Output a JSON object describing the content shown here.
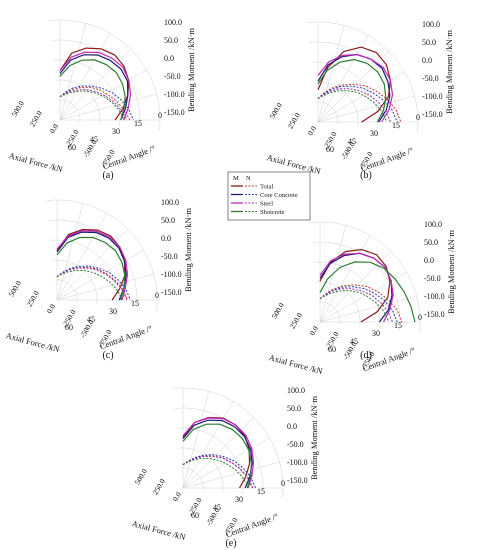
{
  "chart_data": [
    {
      "type": "line",
      "panel_label": "(a)",
      "axis_labels": {
        "bending_moment": "Bending Moment /kN·m",
        "axial_force": "Axial Force /kN",
        "central_angle": "Central Angle /°"
      },
      "moment_ticks": [
        "100.0",
        "50.0",
        "0.0",
        "-50.0",
        "-100.0",
        "-150.0"
      ],
      "axial_ticks": [
        "500.0",
        "250.0",
        "0.0",
        "-250.0",
        "-500.0",
        "-750.0"
      ],
      "angle_ticks": [
        "0",
        "15",
        "30",
        "45",
        "60"
      ],
      "series": [
        {
          "name": "Total",
          "moment": [
            -60,
            5,
            35,
            55,
            65,
            60,
            45,
            20,
            -10,
            -40
          ],
          "axial": [
            -10,
            -60,
            -120,
            -180,
            -240,
            -290,
            -330,
            -380,
            -430,
            -480
          ]
        },
        {
          "name": "Core Concrete",
          "moment": [
            -70,
            -20,
            10,
            30,
            40,
            45,
            40,
            20,
            0,
            -20
          ],
          "axial": [
            -10,
            -70,
            -140,
            -200,
            -260,
            -320,
            -380,
            -430,
            -480,
            -520
          ]
        },
        {
          "name": "Steel",
          "moment": [
            -60,
            -10,
            20,
            40,
            50,
            55,
            45,
            30,
            10,
            -10
          ],
          "axial": [
            -10,
            -50,
            -100,
            -150,
            -200,
            -250,
            -300,
            -350,
            -400,
            -450
          ]
        },
        {
          "name": "Shotcrete",
          "moment": [
            -80,
            -40,
            -10,
            10,
            20,
            25,
            20,
            10,
            -5,
            -20
          ],
          "axial": [
            -10,
            -40,
            -80,
            -130,
            -180,
            -230,
            -280,
            -330,
            -380,
            -420
          ]
        }
      ]
    },
    {
      "type": "line",
      "panel_label": "(b)",
      "axis_labels": {
        "bending_moment": "Bending Moment /kN·m",
        "axial_force": "Axial Force /kN",
        "central_angle": "Central Angle /°"
      },
      "moment_ticks": [
        "100.0",
        "50.0",
        "0.0",
        "-50.0",
        "-100.0",
        "-150.0"
      ],
      "axial_ticks": [
        "500.0",
        "250.0",
        "0.0",
        "-250.0",
        "-500.0",
        "-750.0"
      ],
      "angle_ticks": [
        "0",
        "15",
        "30",
        "45",
        "60"
      ],
      "series": [
        {
          "name": "Total",
          "moment": [
            -120,
            -40,
            30,
            70,
            85,
            80,
            60,
            30,
            -20,
            -80
          ],
          "axial": [
            -10,
            -80,
            -160,
            -240,
            -320,
            -400,
            -460,
            -520,
            -580,
            -620
          ]
        },
        {
          "name": "Core Concrete",
          "moment": [
            -90,
            -30,
            10,
            40,
            55,
            60,
            50,
            35,
            10,
            -20
          ],
          "axial": [
            -10,
            -70,
            -140,
            -220,
            -290,
            -360,
            -420,
            -480,
            -540,
            -580
          ]
        },
        {
          "name": "Steel",
          "moment": [
            -70,
            -20,
            15,
            40,
            55,
            65,
            60,
            45,
            20,
            -10
          ],
          "axial": [
            -10,
            -60,
            -120,
            -190,
            -250,
            -310,
            -370,
            -420,
            -470,
            -510
          ]
        },
        {
          "name": "Shotcrete",
          "moment": [
            -100,
            -50,
            -10,
            20,
            35,
            40,
            35,
            20,
            0,
            -25
          ],
          "axial": [
            -10,
            -50,
            -100,
            -160,
            -220,
            -280,
            -330,
            -380,
            -430,
            -470
          ]
        }
      ]
    },
    {
      "type": "line",
      "panel_label": "(c)",
      "axis_labels": {
        "bending_moment": "Bending Moment /kN·m",
        "axial_force": "Axial Force /kN",
        "central_angle": "Central Angle /°"
      },
      "moment_ticks": [
        "100.0",
        "50.0",
        "0.0",
        "-50.0",
        "-100.0",
        "-150.0"
      ],
      "axial_ticks": [
        "500.0",
        "250.0",
        "0.0",
        "-250.0",
        "-500.0",
        "-750.0"
      ],
      "angle_ticks": [
        "0",
        "15",
        "30",
        "45",
        "60"
      ],
      "series": [
        {
          "name": "Total",
          "moment": [
            -60,
            0,
            30,
            50,
            60,
            55,
            40,
            20,
            -10,
            -40
          ],
          "axial": [
            -10,
            -60,
            -120,
            -180,
            -240,
            -300,
            -350,
            -400,
            -450,
            -490
          ]
        },
        {
          "name": "Core Concrete",
          "moment": [
            -65,
            -10,
            20,
            40,
            50,
            50,
            40,
            25,
            5,
            -15
          ],
          "axial": [
            -10,
            -65,
            -130,
            -195,
            -260,
            -320,
            -380,
            -430,
            -480,
            -520
          ]
        },
        {
          "name": "Steel",
          "moment": [
            -55,
            -5,
            25,
            45,
            55,
            55,
            45,
            30,
            10,
            -5
          ],
          "axial": [
            -10,
            -55,
            -110,
            -170,
            -230,
            -290,
            -340,
            -390,
            -440,
            -480
          ]
        },
        {
          "name": "Shotcrete",
          "moment": [
            -75,
            -30,
            0,
            20,
            30,
            35,
            30,
            20,
            5,
            -10
          ],
          "axial": [
            -10,
            -45,
            -90,
            -140,
            -190,
            -240,
            -290,
            -340,
            -390,
            -430
          ]
        }
      ]
    },
    {
      "type": "line",
      "panel_label": "(d)",
      "axis_labels": {
        "bending_moment": "Bending Moment /kN·m",
        "axial_force": "Axial Force /kN",
        "central_angle": "Central Angle /°"
      },
      "moment_ticks": [
        "100.0",
        "50.0",
        "0.0",
        "-50.0",
        "-100.0",
        "-150.0"
      ],
      "axial_ticks": [
        "500.0",
        "250.0",
        "0.0",
        "-250.0",
        "-500.0",
        "-750.0"
      ],
      "angle_ticks": [
        "0",
        "15",
        "30",
        "45",
        "60"
      ],
      "series": [
        {
          "name": "Total",
          "moment": [
            -90,
            -20,
            30,
            60,
            75,
            70,
            50,
            20,
            -30,
            -90
          ],
          "axial": [
            -10,
            -70,
            -150,
            -230,
            -310,
            -390,
            -450,
            -510,
            -570,
            -610
          ]
        },
        {
          "name": "Core Concrete",
          "moment": [
            -80,
            -25,
            15,
            45,
            60,
            65,
            55,
            35,
            10,
            -25
          ],
          "axial": [
            -10,
            -65,
            -135,
            -210,
            -280,
            -350,
            -410,
            -470,
            -520,
            -560
          ]
        },
        {
          "name": "Steel",
          "moment": [
            -70,
            -15,
            20,
            45,
            60,
            65,
            55,
            40,
            15,
            -10
          ],
          "axial": [
            -10,
            -60,
            -125,
            -190,
            -250,
            -310,
            -370,
            -420,
            -470,
            -510
          ]
        },
        {
          "name": "Shotcrete",
          "moment": [
            -130,
            -80,
            -30,
            10,
            40,
            60,
            70,
            80,
            90,
            100
          ],
          "axial": [
            -10,
            -50,
            -100,
            -160,
            -220,
            -280,
            -330,
            -380,
            -430,
            -470
          ]
        }
      ]
    },
    {
      "type": "line",
      "panel_label": "(e)",
      "axis_labels": {
        "bending_moment": "Bending Moment /kN·m",
        "axial_force": "Axial Force /kN",
        "central_angle": "Central Angle /°"
      },
      "moment_ticks": [
        "100.0",
        "50.0",
        "0.0",
        "-50.0",
        "-100.0",
        "-150.0"
      ],
      "axial_ticks": [
        "500.0",
        "250.0",
        "0.0",
        "-250.0",
        "-500.0",
        "-750.0"
      ],
      "angle_ticks": [
        "0",
        "15",
        "30",
        "45",
        "60"
      ],
      "series": [
        {
          "name": "Total",
          "moment": [
            -55,
            0,
            30,
            50,
            55,
            50,
            35,
            15,
            -10,
            -35
          ],
          "axial": [
            -10,
            -55,
            -110,
            -170,
            -230,
            -290,
            -340,
            -390,
            -440,
            -480
          ]
        },
        {
          "name": "Core Concrete",
          "moment": [
            -60,
            -10,
            20,
            40,
            48,
            48,
            40,
            25,
            5,
            -15
          ],
          "axial": [
            -10,
            -60,
            -120,
            -185,
            -250,
            -310,
            -370,
            -420,
            -470,
            -510
          ]
        },
        {
          "name": "Steel",
          "moment": [
            -50,
            0,
            28,
            48,
            55,
            55,
            45,
            30,
            12,
            -5
          ],
          "axial": [
            -10,
            -50,
            -105,
            -165,
            -225,
            -285,
            -335,
            -385,
            -435,
            -475
          ]
        },
        {
          "name": "Shotcrete",
          "moment": [
            -70,
            -25,
            5,
            25,
            35,
            38,
            33,
            22,
            8,
            -8
          ],
          "axial": [
            -10,
            -45,
            -90,
            -140,
            -190,
            -240,
            -290,
            -340,
            -390,
            -430
          ]
        }
      ]
    }
  ],
  "legend": {
    "col_m": "M",
    "col_n": "N",
    "entries": [
      {
        "name": "Total",
        "color": "#8b1a1a",
        "style_n": "dotted"
      },
      {
        "name": "Core Concrete",
        "color": "#1f2d8a",
        "style_n": "dotted"
      },
      {
        "name": "Steel",
        "color": "#c026c0",
        "style_n": "dotted"
      },
      {
        "name": "Shotcrete",
        "color": "#2e7d32",
        "style_n": "dotted"
      }
    ]
  },
  "colors": {
    "total_m": "#8b1a1a",
    "total_n": "#c0392b",
    "core_m": "#1c1c6e",
    "core_n": "#1f3fbf",
    "steel_m": "#c026c0",
    "steel_n": "#9b2fae",
    "shot_m": "#2e7d32",
    "shot_n": "#2e7d32",
    "grid": "#d0d0d0"
  }
}
